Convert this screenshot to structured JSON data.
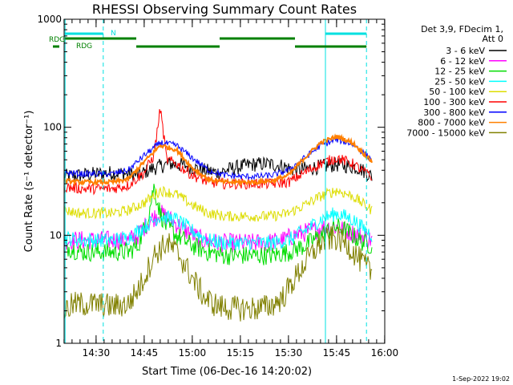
{
  "chart_data": {
    "type": "line",
    "title": "RHESSI Observing Summary Count Rates",
    "xlabel": "Start Time (06-Dec-16 14:20:02)",
    "ylabel": "Count Rate (s⁻¹ detector⁻¹)",
    "y_scale": "log",
    "ylim": [
      1,
      1000
    ],
    "xlim_minutes": [
      0,
      100
    ],
    "x_tick_labels": [
      "14:30",
      "14:45",
      "15:00",
      "15:15",
      "15:30",
      "15:45",
      "16:00"
    ],
    "x_tick_minutes": [
      9.97,
      24.97,
      39.97,
      54.97,
      69.97,
      84.97,
      99.97
    ],
    "y_tick_labels": [
      "1",
      "10",
      "100",
      "1000"
    ],
    "y_tick_values": [
      1,
      10,
      100,
      1000
    ],
    "legend": {
      "header_line1": "Det 3,9, FDecim 1,",
      "header_line2": "Att 0",
      "placement": "right"
    },
    "series": [
      {
        "name": "3 - 6 keV",
        "color": "#000000",
        "x": [
          0,
          5,
          10,
          15,
          20,
          23,
          28,
          33,
          38,
          43,
          48,
          53,
          58,
          63,
          68,
          72,
          77,
          82,
          85,
          88,
          92,
          96
        ],
        "values": [
          35,
          36,
          37,
          38,
          37,
          36,
          42,
          46,
          44,
          40,
          38,
          42,
          45,
          46,
          44,
          40,
          42,
          44,
          45,
          44,
          42,
          35
        ]
      },
      {
        "name": "6 - 12 keV",
        "color": "#ff00ff",
        "x": [
          0,
          5,
          10,
          15,
          20,
          23,
          27,
          30,
          33,
          38,
          43,
          48,
          53,
          58,
          63,
          68,
          72,
          77,
          82,
          85,
          88,
          92,
          96
        ],
        "values": [
          9,
          9,
          9,
          9,
          9,
          10,
          14,
          16,
          14,
          11,
          9,
          8.5,
          8.5,
          8.5,
          8.5,
          9,
          10,
          11,
          12,
          12,
          11,
          10,
          9
        ]
      },
      {
        "name": "12 - 25 keV",
        "color": "#00dd00",
        "x": [
          0,
          5,
          10,
          15,
          20,
          23,
          26,
          28,
          30,
          32,
          35,
          40,
          45,
          50,
          55,
          60,
          65,
          70,
          75,
          80,
          85,
          88,
          92,
          96
        ],
        "values": [
          8,
          7,
          7,
          7,
          7,
          8,
          14,
          28,
          16,
          12,
          10,
          8,
          7,
          6.5,
          6.5,
          6.5,
          6.5,
          7,
          8,
          10,
          12,
          11,
          9,
          8
        ]
      },
      {
        "name": "25 - 50 keV",
        "color": "#00ffff",
        "x": [
          0,
          5,
          10,
          15,
          20,
          25,
          30,
          35,
          40,
          45,
          50,
          55,
          60,
          65,
          70,
          75,
          80,
          85,
          90,
          96
        ],
        "values": [
          9.5,
          9,
          9,
          9,
          9.5,
          12,
          15,
          14,
          11,
          9,
          8.5,
          8.5,
          8.5,
          8.5,
          9,
          11,
          14,
          16,
          14,
          10
        ]
      },
      {
        "name": "50 - 100 keV",
        "color": "#dddd00",
        "x": [
          0,
          5,
          10,
          15,
          20,
          25,
          30,
          35,
          40,
          45,
          50,
          55,
          60,
          65,
          70,
          75,
          80,
          85,
          90,
          96
        ],
        "values": [
          17,
          16,
          16,
          16,
          17,
          20,
          26,
          24,
          19,
          16,
          15,
          15,
          15,
          15,
          16,
          19,
          23,
          26,
          23,
          17
        ]
      },
      {
        "name": "100 - 300 keV",
        "color": "#ff0000",
        "x": [
          0,
          5,
          10,
          15,
          20,
          25,
          28,
          30,
          32,
          35,
          40,
          45,
          50,
          55,
          60,
          65,
          70,
          75,
          80,
          85,
          90,
          96
        ],
        "values": [
          28,
          27,
          27,
          27,
          29,
          38,
          55,
          150,
          50,
          46,
          36,
          31,
          30,
          30,
          30,
          30,
          31,
          38,
          46,
          52,
          46,
          34
        ]
      },
      {
        "name": "300 - 800 keV",
        "color": "#0000ff",
        "x": [
          0,
          5,
          10,
          15,
          20,
          25,
          30,
          35,
          40,
          45,
          50,
          55,
          60,
          65,
          70,
          75,
          80,
          85,
          90,
          96
        ],
        "values": [
          38,
          37,
          37,
          37,
          40,
          55,
          72,
          68,
          52,
          40,
          36,
          35,
          35,
          36,
          40,
          52,
          68,
          77,
          70,
          50
        ]
      },
      {
        "name": "800 - 7000 keV",
        "color": "#ff8000",
        "x": [
          0,
          5,
          10,
          15,
          20,
          25,
          30,
          35,
          40,
          45,
          50,
          55,
          60,
          65,
          70,
          75,
          80,
          85,
          90,
          96
        ],
        "values": [
          32,
          31,
          31,
          31,
          33,
          48,
          68,
          62,
          42,
          33,
          31,
          31,
          31,
          32,
          36,
          52,
          72,
          82,
          72,
          48
        ]
      },
      {
        "name": "7000 - 15000 keV",
        "color": "#808000",
        "x": [
          0,
          3,
          6,
          10,
          15,
          20,
          24,
          28,
          32,
          36,
          40,
          44,
          48,
          52,
          56,
          60,
          64,
          68,
          72,
          76,
          80,
          84,
          88,
          92,
          96
        ],
        "values": [
          2,
          2.3,
          2.3,
          2.3,
          2.2,
          2.3,
          3.5,
          6.5,
          8.5,
          6.5,
          4,
          2.6,
          2.2,
          2.1,
          2.1,
          2.1,
          2.2,
          2.6,
          4,
          6,
          8.5,
          9.5,
          8.5,
          6,
          4.5
        ]
      }
    ],
    "annotations": {
      "cyan_bar_label": "N",
      "green_row_label_1": "RDG",
      "green_row_label_2": "RDG"
    },
    "footer_date": "1-Sep-2022 19:02"
  }
}
